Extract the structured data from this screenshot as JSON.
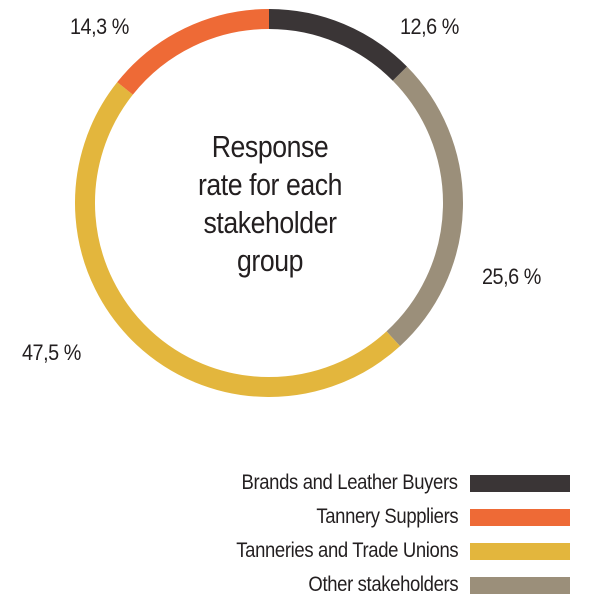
{
  "chart_data": {
    "type": "pie",
    "variant": "donut",
    "center_label": [
      "Response",
      "rate for each",
      "stakeholder",
      "group"
    ],
    "start_angle_deg": 0,
    "direction": "clockwise",
    "slices": [
      {
        "name": "Brands and Leather Buyers",
        "value": 12.6,
        "label": "12,6 %",
        "color": "#3a3536"
      },
      {
        "name": "Other stakeholders",
        "value": 25.6,
        "label": "25,6 %",
        "color": "#9b8f7a"
      },
      {
        "name": "Tanneries and Trade Unions",
        "value": 47.5,
        "label": "47,5 %",
        "color": "#e3b63d"
      },
      {
        "name": "Tannery Suppliers",
        "value": 14.3,
        "label": "14,3 %",
        "color": "#ee6a36"
      }
    ],
    "legend": {
      "placement": "bottom-right",
      "items": [
        {
          "name": "Brands and Leather Buyers",
          "color": "#3a3536"
        },
        {
          "name": "Tannery Suppliers",
          "color": "#ee6a36"
        },
        {
          "name": "Tanneries and Trade Unions",
          "color": "#e3b63d"
        },
        {
          "name": "Other stakeholders",
          "color": "#9b8f7a"
        }
      ]
    }
  }
}
